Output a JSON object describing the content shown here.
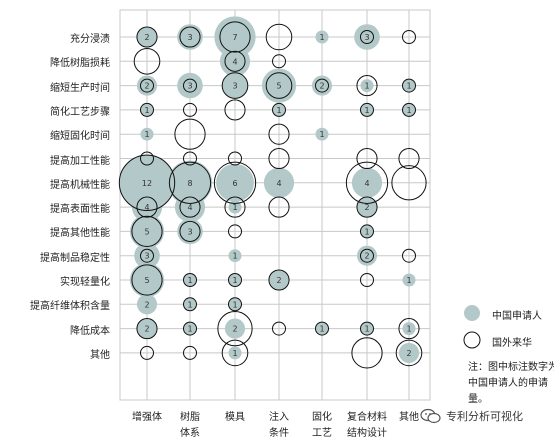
{
  "chart_data": {
    "type": "bubble-matrix",
    "rows": [
      "充分浸渍",
      "降低树脂损耗",
      "缩短生产时间",
      "简化工艺步骤",
      "缩短固化时间",
      "提高加工性能",
      "提高机械性能",
      "提高表面性能",
      "提高其他性能",
      "提高制品稳定性",
      "实现轻量化",
      "提高纤维体积含量",
      "降低成本",
      "其他"
    ],
    "columns": [
      "增强体",
      "树脂\n体系",
      "模具",
      "注入\n条件",
      "固化\n工艺",
      "复合材料\n结构设计",
      "其他"
    ],
    "domestic": [
      [
        2,
        3,
        7,
        0,
        1,
        3,
        0
      ],
      [
        0,
        0,
        4,
        0,
        0,
        0,
        0
      ],
      [
        2,
        3,
        3,
        5,
        2,
        1,
        1
      ],
      [
        1,
        0,
        0,
        1,
        0,
        1,
        1
      ],
      [
        1,
        0,
        0,
        0,
        1,
        0,
        0
      ],
      [
        0,
        0,
        0,
        0,
        0,
        0,
        0
      ],
      [
        12,
        8,
        6,
        4,
        0,
        4,
        0
      ],
      [
        4,
        4,
        1,
        0,
        0,
        2,
        0
      ],
      [
        5,
        3,
        0,
        0,
        0,
        1,
        0
      ],
      [
        3,
        0,
        1,
        0,
        0,
        2,
        0
      ],
      [
        5,
        1,
        1,
        2,
        0,
        0,
        1
      ],
      [
        2,
        1,
        1,
        0,
        0,
        0,
        0
      ],
      [
        2,
        1,
        2,
        0,
        1,
        1,
        1
      ],
      [
        0,
        0,
        1,
        0,
        0,
        0,
        2
      ]
    ],
    "foreign": [
      [
        2,
        2,
        4,
        3,
        0,
        1,
        1
      ],
      [
        3,
        0,
        2,
        1,
        0,
        0,
        0
      ],
      [
        1,
        1,
        3,
        3,
        1,
        2,
        1
      ],
      [
        1,
        1,
        2,
        1,
        0,
        1,
        1
      ],
      [
        0,
        4,
        0,
        2,
        0,
        0,
        0
      ],
      [
        1,
        1,
        1,
        2,
        0,
        2,
        2
      ],
      [
        12,
        7,
        7,
        0,
        0,
        7,
        5
      ],
      [
        2,
        2,
        2,
        2,
        0,
        2,
        0
      ],
      [
        4,
        2,
        1,
        0,
        0,
        1,
        0
      ],
      [
        1,
        0,
        0,
        0,
        0,
        1,
        1
      ],
      [
        4,
        1,
        1,
        2,
        0,
        1,
        0
      ],
      [
        0,
        1,
        1,
        0,
        0,
        0,
        0
      ],
      [
        2,
        1,
        5,
        1,
        1,
        1,
        2
      ],
      [
        1,
        1,
        3,
        0,
        0,
        4,
        3
      ]
    ],
    "legend": [
      {
        "label": "中国申请人",
        "color": "#b3c9c9",
        "style": "filled"
      },
      {
        "label": "国外来华",
        "color": "#000000",
        "style": "outline"
      }
    ],
    "note": "注：图中标注数字为中国申请人的申请量。",
    "grid": true
  },
  "colors": {
    "domestic_fill": "#b3c9c9",
    "foreign_stroke": "#111111",
    "grid": "#c8c8c8",
    "label_text": "#333333"
  },
  "watermark": {
    "text": "专利分析可视化",
    "icon": "wechat-icon"
  }
}
